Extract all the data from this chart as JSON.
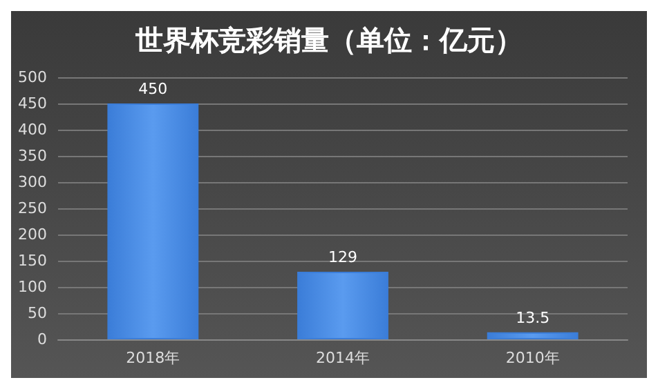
{
  "chart_data": {
    "type": "bar",
    "title": "世界杯竞彩销量（单位：亿元）",
    "categories": [
      "2018年",
      "2014年",
      "2010年"
    ],
    "values": [
      450,
      129,
      13.5
    ],
    "color": "#3b7dd8",
    "ylim": [
      0,
      500
    ],
    "yticks": [
      0,
      50,
      100,
      150,
      200,
      250,
      300,
      350,
      400,
      450,
      500
    ],
    "grid": "y",
    "data_labels": true
  }
}
